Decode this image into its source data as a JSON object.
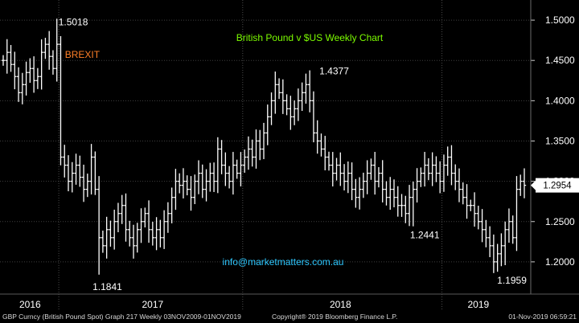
{
  "chart_data": {
    "type": "ohlc",
    "title": "British Pound v $US Weekly Chart",
    "watermark": "info@marketmatters.com.au",
    "last_price_label": "1.2954",
    "ylim": [
      1.16,
      1.525
    ],
    "y_ticks": [
      "1.5000",
      "1.4500",
      "1.4000",
      "1.3500",
      "1.3000",
      "1.2500",
      "1.2000"
    ],
    "y_tick_values": [
      1.5,
      1.45,
      1.4,
      1.35,
      1.3,
      1.25,
      1.2
    ],
    "x_tick_labels": [
      "2016",
      "2017",
      "2018",
      "2019"
    ],
    "annotations": [
      {
        "text": "1.5018",
        "week": 14,
        "price": 1.5018
      },
      {
        "text": "BREXIT",
        "week": 14,
        "price": 1.45
      },
      {
        "text": "1.1841",
        "week": 25,
        "price": 1.1841
      },
      {
        "text": "1.4377",
        "week": 80,
        "price": 1.4377
      },
      {
        "text": "1.2441",
        "week": 107,
        "price": 1.2441
      },
      {
        "text": "1.1959",
        "week": 131,
        "price": 1.1959
      }
    ],
    "series": [
      {
        "prices": [
          1.45,
          1.46,
          1.445,
          1.43,
          1.41,
          1.42,
          1.435,
          1.44,
          1.425,
          1.43,
          1.46,
          1.47,
          1.455,
          1.44,
          1.47,
          1.33,
          1.32,
          1.3,
          1.31,
          1.32,
          1.305,
          1.29,
          1.3,
          1.33,
          1.29,
          1.23,
          1.22,
          1.24,
          1.23,
          1.25,
          1.26,
          1.27,
          1.24,
          1.23,
          1.22,
          1.24,
          1.25,
          1.26,
          1.24,
          1.23,
          1.24,
          1.23,
          1.25,
          1.26,
          1.28,
          1.3,
          1.295,
          1.3,
          1.29,
          1.28,
          1.3,
          1.31,
          1.29,
          1.3,
          1.31,
          1.3,
          1.34,
          1.32,
          1.31,
          1.3,
          1.32,
          1.31,
          1.32,
          1.33,
          1.34,
          1.33,
          1.35,
          1.34,
          1.36,
          1.38,
          1.4,
          1.42,
          1.41,
          1.4,
          1.39,
          1.38,
          1.39,
          1.4,
          1.41,
          1.42,
          1.4,
          1.36,
          1.35,
          1.34,
          1.33,
          1.32,
          1.31,
          1.32,
          1.31,
          1.3,
          1.31,
          1.29,
          1.28,
          1.29,
          1.3,
          1.31,
          1.32,
          1.3,
          1.31,
          1.29,
          1.28,
          1.29,
          1.28,
          1.27,
          1.27,
          1.26,
          1.28,
          1.29,
          1.3,
          1.31,
          1.32,
          1.31,
          1.32,
          1.31,
          1.3,
          1.32,
          1.33,
          1.31,
          1.3,
          1.29,
          1.28,
          1.27,
          1.27,
          1.26,
          1.25,
          1.24,
          1.23,
          1.22,
          1.2,
          1.21,
          1.22,
          1.24,
          1.25,
          1.23,
          1.29,
          1.3,
          1.295
        ]
      }
    ]
  },
  "footer": {
    "left_text": "GBP Curncy (British Pound Spot) Graph 217  Weekly 03NOV2009-01NOV2019",
    "center_text": "Copyright® 2019 Bloomberg Finance L.P.",
    "right_text": "01-Nov-2019 06:59:21"
  },
  "colors": {
    "background": "#000000",
    "price_bars": "#ffffff",
    "title": "#7cfc00",
    "watermark": "#2ec8ff",
    "brexit_label": "#ff7f27",
    "grid": "#3f3f3f",
    "last_price_box": "#ffffff"
  }
}
